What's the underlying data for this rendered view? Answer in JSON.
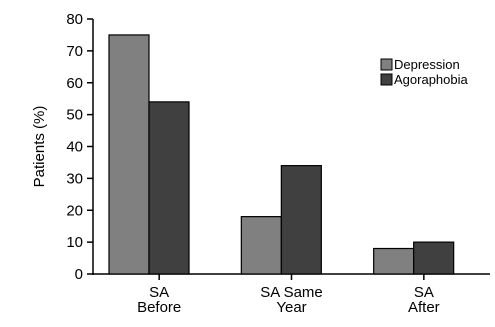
{
  "chart_data": {
    "type": "bar",
    "categories": [
      [
        "SA",
        "Before"
      ],
      [
        "SA Same",
        "Year"
      ],
      [
        "SA",
        "After"
      ]
    ],
    "series": [
      {
        "name": "Depression",
        "values": [
          75,
          18,
          8
        ],
        "color": "#808080"
      },
      {
        "name": "Agoraphobia",
        "values": [
          54,
          34,
          10
        ],
        "color": "#404040"
      }
    ],
    "ylabel": "Patients (%)",
    "ylim": [
      0,
      80
    ],
    "yticks": [
      0,
      10,
      20,
      30,
      40,
      50,
      60,
      70,
      80
    ],
    "grid": false,
    "legend": "top-right"
  }
}
